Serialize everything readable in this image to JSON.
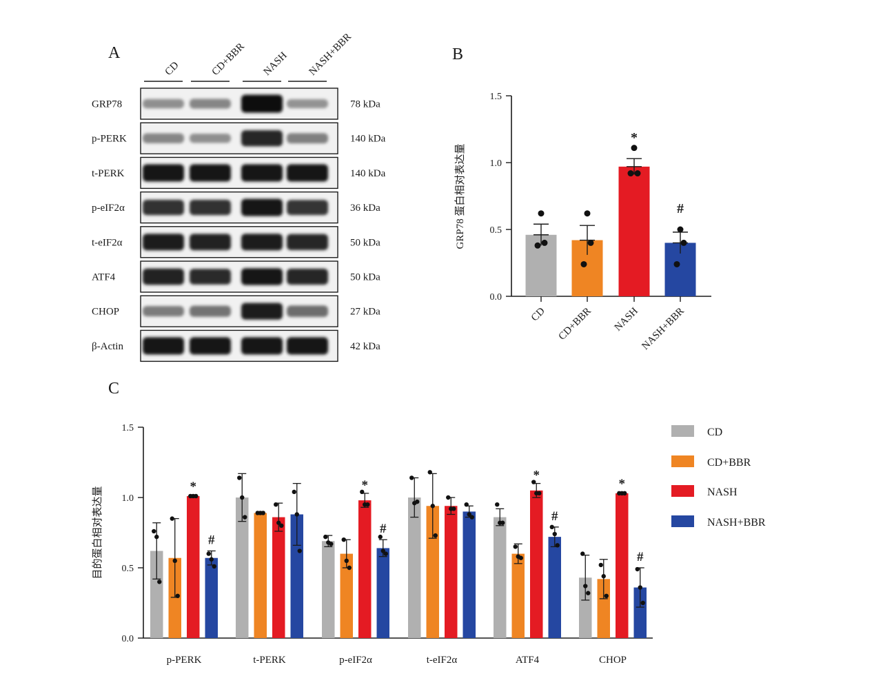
{
  "panels": {
    "a": "A",
    "b": "B",
    "c": "C"
  },
  "blot": {
    "groups": [
      "CD",
      "CD+BBR",
      "NASH",
      "NASH+BBR"
    ],
    "rows": [
      {
        "protein": "GRP78",
        "size": "78 kDa",
        "intensity": [
          0.3,
          0.35,
          1.0,
          0.28
        ]
      },
      {
        "protein": "p-PERK",
        "size": "140 kDa",
        "intensity": [
          0.35,
          0.3,
          0.85,
          0.38
        ]
      },
      {
        "protein": "t-PERK",
        "size": "140 kDa",
        "intensity": [
          0.95,
          0.95,
          0.95,
          0.95
        ]
      },
      {
        "protein": "p-eIF2α",
        "size": "36 kDa",
        "intensity": [
          0.8,
          0.8,
          0.95,
          0.78
        ]
      },
      {
        "protein": "t-eIF2α",
        "size": "50 kDa",
        "intensity": [
          0.9,
          0.88,
          0.9,
          0.85
        ]
      },
      {
        "protein": "ATF4",
        "size": "50 kDa",
        "intensity": [
          0.88,
          0.82,
          0.92,
          0.85
        ]
      },
      {
        "protein": "CHOP",
        "size": "27 kDa",
        "intensity": [
          0.4,
          0.45,
          0.9,
          0.48
        ]
      },
      {
        "protein": "β-Actin",
        "size": "42 kDa",
        "intensity": [
          0.95,
          0.95,
          0.95,
          0.95
        ]
      }
    ]
  },
  "colors": {
    "CD": "#b0b0b0",
    "CD+BBR": "#ef8523",
    "NASH": "#e41b23",
    "NASH+BBR": "#2547a1",
    "axis": "#1a1a1a"
  },
  "chart_data": [
    {
      "type": "bar",
      "ylabel": "GRP78 蛋白相对表达量",
      "ylim": [
        0,
        1.5
      ],
      "yticks": [
        "0.0",
        "0.5",
        "1.0",
        "1.5"
      ],
      "categories": [
        "CD",
        "CD+BBR",
        "NASH",
        "NASH+BBR"
      ],
      "values": [
        0.46,
        0.42,
        0.97,
        0.4
      ],
      "errors": [
        0.08,
        0.11,
        0.06,
        0.08
      ],
      "points": [
        [
          0.62,
          0.38,
          0.4
        ],
        [
          0.62,
          0.24,
          0.4
        ],
        [
          1.11,
          0.92,
          0.92
        ],
        [
          0.5,
          0.24,
          0.4
        ]
      ],
      "annotations": [
        "",
        "",
        "*",
        "#"
      ]
    },
    {
      "type": "bar",
      "ylabel": "目的蛋白相对表达量",
      "ylim": [
        0,
        1.5
      ],
      "yticks": [
        "0.0",
        "0.5",
        "1.0",
        "1.5"
      ],
      "categories": [
        "p-PERK",
        "t-PERK",
        "p-eIF2α",
        "t-eIF2α",
        "ATF4",
        "CHOP"
      ],
      "legend": {
        "position": "right",
        "labels": [
          "CD",
          "CD+BBR",
          "NASH",
          "NASH+BBR"
        ]
      },
      "series": [
        {
          "name": "CD",
          "values": [
            0.62,
            1.0,
            0.69,
            1.0,
            0.86,
            0.43
          ],
          "errors": [
            0.2,
            0.17,
            0.04,
            0.14,
            0.06,
            0.16
          ],
          "points": [
            [
              0.76,
              0.72,
              0.4
            ],
            [
              1.14,
              1.0,
              0.86
            ],
            [
              0.72,
              0.68,
              0.67
            ],
            [
              1.14,
              0.96,
              0.97
            ],
            [
              0.95,
              0.82,
              0.82
            ],
            [
              0.6,
              0.37,
              0.32
            ]
          ]
        },
        {
          "name": "CD+BBR",
          "values": [
            0.57,
            0.89,
            0.6,
            0.94,
            0.6,
            0.42
          ],
          "errors": [
            0.28,
            0.01,
            0.1,
            0.23,
            0.07,
            0.14
          ],
          "points": [
            [
              0.85,
              0.55,
              0.3
            ],
            [
              0.89,
              0.89,
              0.89
            ],
            [
              0.7,
              0.55,
              0.5
            ],
            [
              1.18,
              0.94,
              0.73
            ],
            [
              0.65,
              0.58,
              0.57
            ],
            [
              0.52,
              0.44,
              0.3
            ]
          ]
        },
        {
          "name": "NASH",
          "values": [
            1.01,
            0.86,
            0.98,
            0.94,
            1.05,
            1.03
          ],
          "errors": [
            0.01,
            0.1,
            0.05,
            0.06,
            0.05,
            0.01
          ],
          "points": [
            [
              1.01,
              1.01,
              1.01
            ],
            [
              0.95,
              0.82,
              0.8
            ],
            [
              1.04,
              0.95,
              0.95
            ],
            [
              1.0,
              0.92,
              0.92
            ],
            [
              1.11,
              1.03,
              1.03
            ],
            [
              1.03,
              1.03,
              1.03
            ]
          ]
        },
        {
          "name": "NASH+BBR",
          "values": [
            0.57,
            0.88,
            0.64,
            0.9,
            0.72,
            0.36
          ],
          "errors": [
            0.05,
            0.22,
            0.06,
            0.04,
            0.07,
            0.14
          ],
          "points": [
            [
              0.6,
              0.56,
              0.51
            ],
            [
              1.04,
              0.88,
              0.62
            ],
            [
              0.72,
              0.62,
              0.6
            ],
            [
              0.95,
              0.88,
              0.86
            ],
            [
              0.79,
              0.74,
              0.66
            ],
            [
              0.49,
              0.36,
              0.25
            ]
          ]
        }
      ],
      "annotations": [
        {
          "category": 0,
          "series": 2,
          "text": "*"
        },
        {
          "category": 0,
          "series": 3,
          "text": "#"
        },
        {
          "category": 2,
          "series": 2,
          "text": "*"
        },
        {
          "category": 2,
          "series": 3,
          "text": "#"
        },
        {
          "category": 4,
          "series": 2,
          "text": "*"
        },
        {
          "category": 4,
          "series": 3,
          "text": "#"
        },
        {
          "category": 5,
          "series": 2,
          "text": "*"
        },
        {
          "category": 5,
          "series": 3,
          "text": "#"
        }
      ]
    }
  ]
}
